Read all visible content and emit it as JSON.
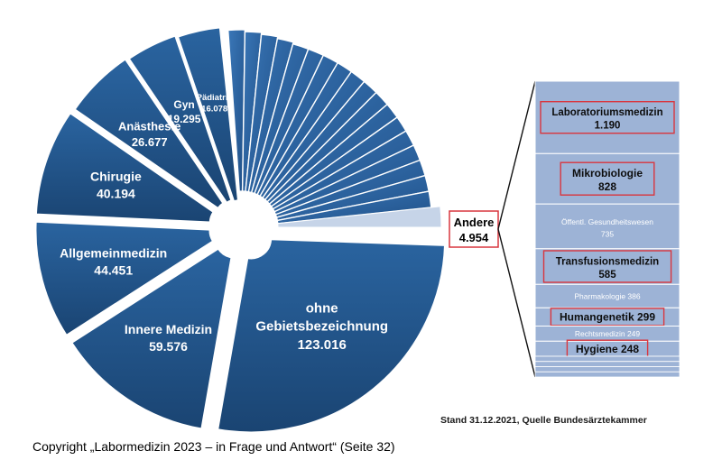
{
  "chart_data": {
    "type": "pie",
    "slices": [
      {
        "label": "ohne Gebietsbezeichnung",
        "value": 123016,
        "value_text": "123.016"
      },
      {
        "label": "Innere Medizin",
        "value": 59576,
        "value_text": "59.576"
      },
      {
        "label": "Allgemeinmedizin",
        "value": 44451,
        "value_text": "44.451"
      },
      {
        "label": "Chirugie",
        "value": 40194,
        "value_text": "40.194"
      },
      {
        "label": "Anästhesie",
        "value": 26677,
        "value_text": "26.677"
      },
      {
        "label": "Gyn",
        "value": 19295,
        "value_text": "19.295"
      },
      {
        "label": "Pädiatrie",
        "value": 16078,
        "value_text": "16.078"
      }
    ],
    "andere": {
      "label": "Andere",
      "value": 4954,
      "value_text": "4.954"
    },
    "breakdown": [
      {
        "label": "Laboratoriumsmedizin",
        "value": 1190,
        "value_text": "1.190",
        "highlight": true
      },
      {
        "label": "Mikrobiologie",
        "value": 828,
        "value_text": "828",
        "highlight": true
      },
      {
        "label": "Öffentl. Gesundheitswesen",
        "value": 735,
        "value_text": "735",
        "highlight": false
      },
      {
        "label": "Transfusionsmedizin",
        "value": 585,
        "value_text": "585",
        "highlight": true
      },
      {
        "label": "Pharmakologie",
        "value": 386,
        "value_text": "386",
        "highlight": false
      },
      {
        "label": "Humangenetik",
        "value": 299,
        "value_text": "299",
        "highlight": true
      },
      {
        "label": "Rechtsmedizin",
        "value": 249,
        "value_text": "249",
        "highlight": false
      },
      {
        "label": "Hygiene",
        "value": 248,
        "value_text": "248",
        "highlight": true
      }
    ],
    "colors": {
      "slice": "#1f4e79",
      "slice_light": "#2e6aa8",
      "small_slice": "#2c63a0",
      "breakdown_bg": "#9db3d6",
      "highlight_border": "#d9363e"
    }
  },
  "footer": {
    "source": "Stand 31.12.2021, Quelle Bundesärztekammer",
    "copyright": "Copyright „Labormedizin 2023 – in Frage und Antwort“ (Seite 32)"
  }
}
